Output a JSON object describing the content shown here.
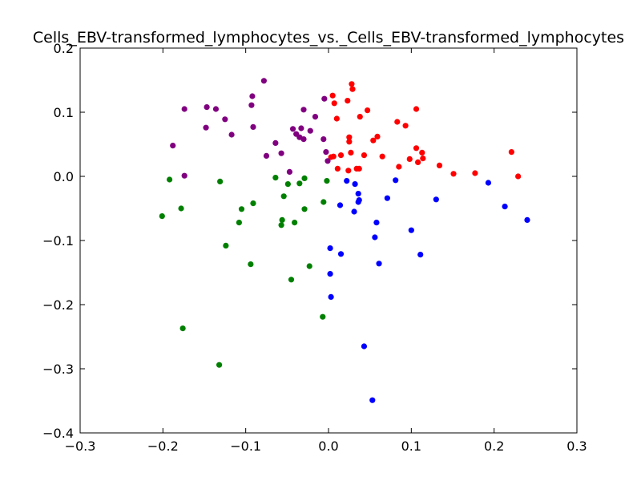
{
  "chart_data": {
    "type": "scatter",
    "title": "Cells_EBV-transformed_lymphocytes_vs._Cells_EBV-transformed_lymphocytes",
    "xlabel": "",
    "ylabel": "",
    "xlim": [
      -0.3,
      0.3
    ],
    "ylim": [
      -0.4,
      0.2
    ],
    "xticks": [
      -0.3,
      -0.2,
      -0.1,
      0.0,
      0.1,
      0.2,
      0.3
    ],
    "yticks": [
      -0.4,
      -0.3,
      -0.2,
      -0.1,
      0.0,
      0.1,
      0.2
    ],
    "xtick_labels": [
      "−0.3",
      "−0.2",
      "−0.1",
      "0.0",
      "0.1",
      "0.2",
      "0.3"
    ],
    "ytick_labels": [
      "−0.4",
      "−0.3",
      "−0.2",
      "−0.1",
      "0.0",
      "0.1",
      "0.2"
    ],
    "grid": false,
    "legend": "none",
    "series": [
      {
        "color": "#ff0000",
        "points": [
          [
            0.005,
            0.126
          ],
          [
            0.007,
            0.114
          ],
          [
            0.01,
            0.09
          ],
          [
            0.028,
            0.144
          ],
          [
            0.029,
            0.136
          ],
          [
            0.023,
            0.118
          ],
          [
            0.038,
            0.093
          ],
          [
            0.047,
            0.103
          ],
          [
            0.025,
            0.061
          ],
          [
            0.025,
            0.054
          ],
          [
            0.054,
            0.056
          ],
          [
            0.059,
            0.062
          ],
          [
            0.083,
            0.085
          ],
          [
            0.093,
            0.079
          ],
          [
            0.106,
            0.105
          ],
          [
            0.003,
            0.03
          ],
          [
            0.006,
            0.031
          ],
          [
            0.015,
            0.033
          ],
          [
            0.027,
            0.037
          ],
          [
            0.043,
            0.033
          ],
          [
            0.065,
            0.031
          ],
          [
            0.106,
            0.044
          ],
          [
            0.113,
            0.037
          ],
          [
            0.114,
            0.028
          ],
          [
            0.098,
            0.027
          ],
          [
            0.108,
            0.022
          ],
          [
            0.085,
            0.015
          ],
          [
            0.134,
            0.017
          ],
          [
            0.151,
            0.004
          ],
          [
            0.177,
            0.005
          ],
          [
            0.011,
            0.012
          ],
          [
            0.024,
            0.009
          ],
          [
            0.034,
            0.012
          ],
          [
            0.037,
            0.012
          ],
          [
            0.221,
            0.038
          ],
          [
            0.229,
            0.0
          ]
        ]
      },
      {
        "color": "#800080",
        "points": [
          [
            -0.078,
            0.149
          ],
          [
            -0.174,
            0.105
          ],
          [
            -0.147,
            0.108
          ],
          [
            -0.136,
            0.105
          ],
          [
            -0.092,
            0.125
          ],
          [
            -0.093,
            0.111
          ],
          [
            -0.125,
            0.089
          ],
          [
            -0.148,
            0.076
          ],
          [
            -0.091,
            0.077
          ],
          [
            -0.117,
            0.065
          ],
          [
            -0.188,
            0.048
          ],
          [
            -0.174,
            0.001
          ],
          [
            -0.03,
            0.104
          ],
          [
            -0.005,
            0.121
          ],
          [
            -0.016,
            0.093
          ],
          [
            -0.043,
            0.074
          ],
          [
            -0.033,
            0.075
          ],
          [
            -0.039,
            0.066
          ],
          [
            -0.035,
            0.061
          ],
          [
            -0.03,
            0.058
          ],
          [
            -0.022,
            0.071
          ],
          [
            -0.006,
            0.058
          ],
          [
            -0.064,
            0.052
          ],
          [
            -0.057,
            0.036
          ],
          [
            -0.075,
            0.032
          ],
          [
            -0.003,
            0.038
          ],
          [
            -0.001,
            0.024
          ],
          [
            -0.047,
            0.007
          ]
        ]
      },
      {
        "color": "#008000",
        "points": [
          [
            -0.064,
            -0.002
          ],
          [
            -0.029,
            -0.003
          ],
          [
            -0.049,
            -0.012
          ],
          [
            -0.035,
            -0.011
          ],
          [
            -0.002,
            -0.007
          ],
          [
            -0.192,
            -0.005
          ],
          [
            -0.131,
            -0.008
          ],
          [
            -0.054,
            -0.031
          ],
          [
            -0.006,
            -0.04
          ],
          [
            -0.091,
            -0.042
          ],
          [
            -0.178,
            -0.05
          ],
          [
            -0.105,
            -0.051
          ],
          [
            -0.029,
            -0.051
          ],
          [
            -0.201,
            -0.062
          ],
          [
            -0.056,
            -0.068
          ],
          [
            -0.108,
            -0.072
          ],
          [
            -0.041,
            -0.072
          ],
          [
            -0.057,
            -0.076
          ],
          [
            -0.124,
            -0.108
          ],
          [
            -0.094,
            -0.137
          ],
          [
            -0.023,
            -0.14
          ],
          [
            -0.045,
            -0.161
          ],
          [
            -0.007,
            -0.219
          ],
          [
            -0.176,
            -0.237
          ],
          [
            -0.132,
            -0.294
          ]
        ]
      },
      {
        "color": "#0000ff",
        "points": [
          [
            0.022,
            -0.007
          ],
          [
            0.032,
            -0.012
          ],
          [
            0.036,
            -0.027
          ],
          [
            0.037,
            -0.037
          ],
          [
            0.036,
            -0.04
          ],
          [
            0.014,
            -0.045
          ],
          [
            0.031,
            -0.055
          ],
          [
            0.058,
            -0.072
          ],
          [
            0.071,
            -0.034
          ],
          [
            0.081,
            -0.006
          ],
          [
            0.13,
            -0.036
          ],
          [
            0.193,
            -0.01
          ],
          [
            0.213,
            -0.047
          ],
          [
            0.24,
            -0.068
          ],
          [
            0.1,
            -0.084
          ],
          [
            0.056,
            -0.095
          ],
          [
            0.002,
            -0.112
          ],
          [
            0.015,
            -0.121
          ],
          [
            0.111,
            -0.122
          ],
          [
            0.061,
            -0.136
          ],
          [
            0.002,
            -0.152
          ],
          [
            0.003,
            -0.188
          ],
          [
            0.043,
            -0.265
          ],
          [
            0.053,
            -0.349
          ]
        ]
      }
    ]
  }
}
